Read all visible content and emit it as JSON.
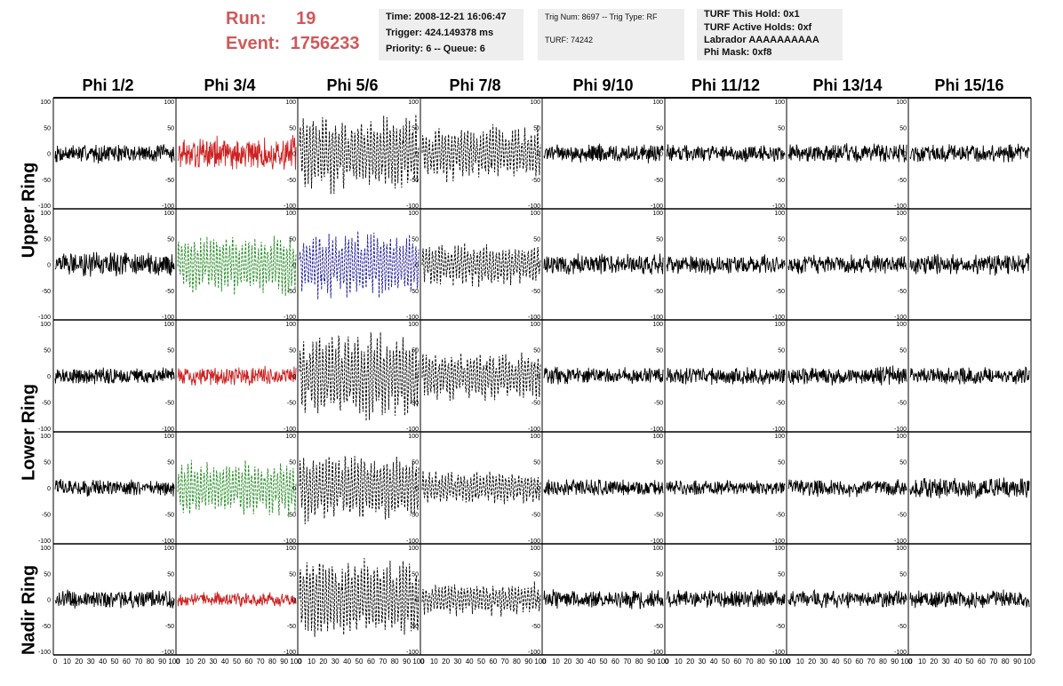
{
  "header": {
    "run_label": "Run:",
    "run_value": "19",
    "event_label": "Event:",
    "event_value": "1756233"
  },
  "time_box": {
    "time": "Time: 2008-12-21 16:06:47",
    "trigger": "Trigger: 424.149378 ms",
    "priority": "Priority: 6 -- Queue: 6"
  },
  "trig_box": {
    "trig": "Trig Num: 8697 -- Trig Type: RF",
    "turf": "TURF: 74242"
  },
  "turf_box": {
    "hold": "TURF This Hold: 0x1",
    "active": "TURF Active Holds: 0xf",
    "labrador": "Labrador AAAAAAAAAA",
    "phimask": "Phi Mask: 0xf8"
  },
  "columns": [
    "Phi 1/2",
    "Phi 3/4",
    "Phi 5/6",
    "Phi 7/8",
    "Phi 9/10",
    "Phi 11/12",
    "Phi 13/14",
    "Phi 15/16"
  ],
  "row_labels": {
    "upper": "Upper Ring",
    "lower": "Lower Ring",
    "nadir": "Nadir Ring"
  },
  "chart_data": {
    "type": "line",
    "title": "",
    "xlabel": "",
    "ylabel": "",
    "xlim": [
      0,
      100
    ],
    "ylim": [
      -100,
      100
    ],
    "x_ticks": [
      0,
      10,
      20,
      30,
      40,
      50,
      60,
      70,
      80,
      90,
      100
    ],
    "y_ticks": [
      100,
      50,
      0,
      -50,
      -100
    ],
    "grid": false,
    "colors": {
      "black": "#000000",
      "red": "#cc2222",
      "green": "#228b22",
      "blue": "#1a1a99"
    },
    "panels": [
      {
        "row": 0,
        "col": 0,
        "color": "black",
        "style": "solid",
        "amplitude": 20
      },
      {
        "row": 0,
        "col": 1,
        "color": "red",
        "style": "solid",
        "amplitude": 35
      },
      {
        "row": 0,
        "col": 2,
        "color": "black",
        "style": "dashed",
        "amplitude": 70
      },
      {
        "row": 0,
        "col": 3,
        "color": "black",
        "style": "dashed",
        "amplitude": 50
      },
      {
        "row": 0,
        "col": 4,
        "color": "black",
        "style": "solid",
        "amplitude": 20
      },
      {
        "row": 0,
        "col": 5,
        "color": "black",
        "style": "solid",
        "amplitude": 18
      },
      {
        "row": 0,
        "col": 6,
        "color": "black",
        "style": "solid",
        "amplitude": 20
      },
      {
        "row": 0,
        "col": 7,
        "color": "black",
        "style": "solid",
        "amplitude": 20
      },
      {
        "row": 1,
        "col": 0,
        "color": "black",
        "style": "solid",
        "amplitude": 25
      },
      {
        "row": 1,
        "col": 1,
        "color": "green",
        "style": "dashed",
        "amplitude": 55
      },
      {
        "row": 1,
        "col": 2,
        "color": "blue",
        "style": "dashed",
        "amplitude": 60
      },
      {
        "row": 1,
        "col": 3,
        "color": "black",
        "style": "dashed",
        "amplitude": 40
      },
      {
        "row": 1,
        "col": 4,
        "color": "black",
        "style": "solid",
        "amplitude": 22
      },
      {
        "row": 1,
        "col": 5,
        "color": "black",
        "style": "solid",
        "amplitude": 20
      },
      {
        "row": 1,
        "col": 6,
        "color": "black",
        "style": "solid",
        "amplitude": 20
      },
      {
        "row": 1,
        "col": 7,
        "color": "black",
        "style": "solid",
        "amplitude": 22
      },
      {
        "row": 2,
        "col": 0,
        "color": "black",
        "style": "solid",
        "amplitude": 18
      },
      {
        "row": 2,
        "col": 1,
        "color": "red",
        "style": "solid",
        "amplitude": 20
      },
      {
        "row": 2,
        "col": 2,
        "color": "black",
        "style": "dashed",
        "amplitude": 80
      },
      {
        "row": 2,
        "col": 3,
        "color": "black",
        "style": "dashed",
        "amplitude": 45
      },
      {
        "row": 2,
        "col": 4,
        "color": "black",
        "style": "solid",
        "amplitude": 18
      },
      {
        "row": 2,
        "col": 5,
        "color": "black",
        "style": "solid",
        "amplitude": 18
      },
      {
        "row": 2,
        "col": 6,
        "color": "black",
        "style": "solid",
        "amplitude": 20
      },
      {
        "row": 2,
        "col": 7,
        "color": "black",
        "style": "solid",
        "amplitude": 18
      },
      {
        "row": 3,
        "col": 0,
        "color": "black",
        "style": "solid",
        "amplitude": 18
      },
      {
        "row": 3,
        "col": 1,
        "color": "green",
        "style": "dashed",
        "amplitude": 50
      },
      {
        "row": 3,
        "col": 2,
        "color": "black",
        "style": "dashed",
        "amplitude": 60
      },
      {
        "row": 3,
        "col": 3,
        "color": "black",
        "style": "dashed",
        "amplitude": 30
      },
      {
        "row": 3,
        "col": 4,
        "color": "black",
        "style": "solid",
        "amplitude": 18
      },
      {
        "row": 3,
        "col": 5,
        "color": "black",
        "style": "solid",
        "amplitude": 15
      },
      {
        "row": 3,
        "col": 6,
        "color": "black",
        "style": "solid",
        "amplitude": 18
      },
      {
        "row": 3,
        "col": 7,
        "color": "black",
        "style": "solid",
        "amplitude": 22
      },
      {
        "row": 4,
        "col": 0,
        "color": "black",
        "style": "solid",
        "amplitude": 20
      },
      {
        "row": 4,
        "col": 1,
        "color": "red",
        "style": "solid",
        "amplitude": 15
      },
      {
        "row": 4,
        "col": 2,
        "color": "black",
        "style": "dashed",
        "amplitude": 75
      },
      {
        "row": 4,
        "col": 3,
        "color": "black",
        "style": "dashed",
        "amplitude": 30
      },
      {
        "row": 4,
        "col": 4,
        "color": "black",
        "style": "solid",
        "amplitude": 20
      },
      {
        "row": 4,
        "col": 5,
        "color": "black",
        "style": "solid",
        "amplitude": 20
      },
      {
        "row": 4,
        "col": 6,
        "color": "black",
        "style": "solid",
        "amplitude": 18
      },
      {
        "row": 4,
        "col": 7,
        "color": "black",
        "style": "solid",
        "amplitude": 20
      }
    ]
  }
}
